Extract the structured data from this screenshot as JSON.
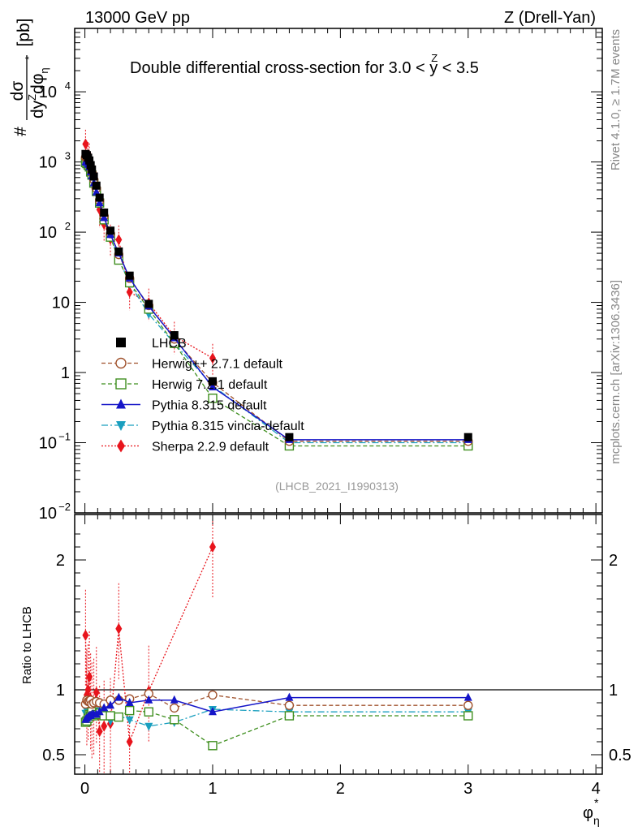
{
  "header": {
    "left": "13000 GeV pp",
    "right": "Z (Drell-Yan)"
  },
  "side": {
    "rivet": "Rivet 4.1.0, ≥ 1.7M events",
    "mcplots": "mcplots.cern.ch [arXiv:1306.3436]"
  },
  "chart_data": {
    "type": "scatter",
    "title": "Double differential cross-section for 3.0 < y^Z < 3.5",
    "title_parts": {
      "pre": "Double differential cross-section for 3.0 < ",
      "var": "y",
      "sup": "Z",
      "post": " < 3.5"
    },
    "analysis_tag": "(LHCB_2021_I1990313)",
    "ylabel": "#dσ/dy^Z dφ*_η [pb]",
    "ylabel_parts": {
      "hash": "#",
      "num": "dσ",
      "den": "dy",
      "den_sup": "Z",
      "den_phi": "dφ",
      "den_phi_sup": "*",
      "den_phi_sub": "η",
      "unit": "[pb]"
    },
    "ratio_ylabel": "Ratio to LHCB",
    "xlabel": "φ*_η",
    "xlabel_parts": {
      "sym": "φ",
      "sup": "*",
      "sub": "η"
    },
    "xlim": [
      -0.08,
      4.05
    ],
    "ylim_log": [
      0.01,
      80000
    ],
    "ratio_ylim": [
      0.35,
      2.35
    ],
    "x_ticks": [
      {
        "v": 0,
        "label": "0"
      },
      {
        "v": 1,
        "label": "1"
      },
      {
        "v": 2,
        "label": "2"
      },
      {
        "v": 3,
        "label": "3"
      },
      {
        "v": 4,
        "label": "4"
      }
    ],
    "y_ticks": [
      {
        "v": 0.01,
        "label": "10",
        "sup": "−2"
      },
      {
        "v": 0.1,
        "label": "10",
        "sup": "−1"
      },
      {
        "v": 1,
        "label": "1",
        "sup": ""
      },
      {
        "v": 10,
        "label": "10",
        "sup": ""
      },
      {
        "v": 100,
        "label": "10",
        "sup": "2"
      },
      {
        "v": 1000,
        "label": "10",
        "sup": "3"
      },
      {
        "v": 10000,
        "label": "10",
        "sup": "4"
      }
    ],
    "ratio_ticks": [
      {
        "v": 0.5,
        "label": "0.5"
      },
      {
        "v": 1,
        "label": "1"
      },
      {
        "v": 2,
        "label": "2"
      }
    ],
    "x": [
      0.005,
      0.015,
      0.025,
      0.035,
      0.045,
      0.055,
      0.07,
      0.09,
      0.115,
      0.15,
      0.2,
      0.265,
      0.35,
      0.5,
      0.7,
      1.0,
      1.6,
      3.0
    ],
    "series": [
      {
        "name": "LHCB",
        "key": "lhcb",
        "values": [
          1300,
          1250,
          1150,
          1050,
          900,
          780,
          620,
          460,
          310,
          190,
          105,
          53,
          24,
          9.5,
          3.4,
          0.75,
          0.12,
          0.12
        ],
        "ratio": [
          1,
          1,
          1,
          1,
          1,
          1,
          1,
          1,
          1,
          1,
          1,
          1,
          1,
          1,
          1,
          1,
          1,
          1
        ]
      },
      {
        "name": "Herwig++ 2.7.1 default",
        "key": "herwigpp",
        "values": [
          1160,
          1150,
          1050,
          960,
          830,
          700,
          560,
          420,
          280,
          170,
          95,
          48,
          22,
          9.0,
          3.0,
          0.72,
          0.105,
          0.105
        ],
        "ratio": [
          0.89,
          0.92,
          0.91,
          0.91,
          0.92,
          0.89,
          0.9,
          0.91,
          0.9,
          0.89,
          0.92,
          0.92,
          0.93,
          0.97,
          0.86,
          0.96,
          0.88,
          0.88
        ]
      },
      {
        "name": "Herwig 7.2.1 default",
        "key": "herwig7",
        "values": [
          980,
          950,
          900,
          850,
          720,
          650,
          500,
          380,
          260,
          150,
          85,
          40,
          19,
          8.0,
          2.6,
          0.43,
          0.09,
          0.09
        ],
        "ratio": [
          0.75,
          0.76,
          0.78,
          0.81,
          0.8,
          0.83,
          0.8,
          0.81,
          0.82,
          0.8,
          0.8,
          0.79,
          0.84,
          0.83,
          0.77,
          0.57,
          0.8,
          0.8
        ]
      },
      {
        "name": "Pythia 8.315 default",
        "key": "pythia",
        "values": [
          1000,
          980,
          920,
          850,
          720,
          630,
          500,
          370,
          260,
          160,
          92,
          50,
          22,
          8.8,
          3.1,
          0.62,
          0.11,
          0.11
        ],
        "ratio": [
          0.77,
          0.78,
          0.79,
          0.8,
          0.8,
          0.81,
          0.81,
          0.81,
          0.83,
          0.86,
          0.88,
          0.94,
          0.9,
          0.92,
          0.92,
          0.83,
          0.94,
          0.94
        ]
      },
      {
        "name": "Pythia 8.315 vincia-default",
        "key": "vincia",
        "values": [
          1050,
          1000,
          950,
          870,
          750,
          660,
          520,
          390,
          260,
          155,
          85,
          42,
          18.5,
          6.8,
          2.6,
          0.65,
          0.1,
          0.1
        ],
        "ratio": [
          0.82,
          0.84,
          0.84,
          0.83,
          0.84,
          0.84,
          0.83,
          0.82,
          0.84,
          0.82,
          0.76,
          0.8,
          0.77,
          0.72,
          0.75,
          0.85,
          0.83,
          0.83
        ]
      },
      {
        "name": "Sherpa 2.2.9 default",
        "key": "sherpa",
        "values": [
          1800,
          1250,
          1200,
          1150,
          850,
          700,
          560,
          450,
          210,
          130,
          80,
          78,
          14,
          9.8,
          3.3,
          1.6,
          null,
          null
        ],
        "ratio": [
          1.42,
          0.96,
          1.0,
          1.1,
          0.93,
          0.86,
          0.89,
          0.98,
          0.68,
          0.72,
          0.74,
          1.47,
          0.6,
          0.99,
          null,
          2.1,
          null,
          null
        ]
      }
    ]
  }
}
